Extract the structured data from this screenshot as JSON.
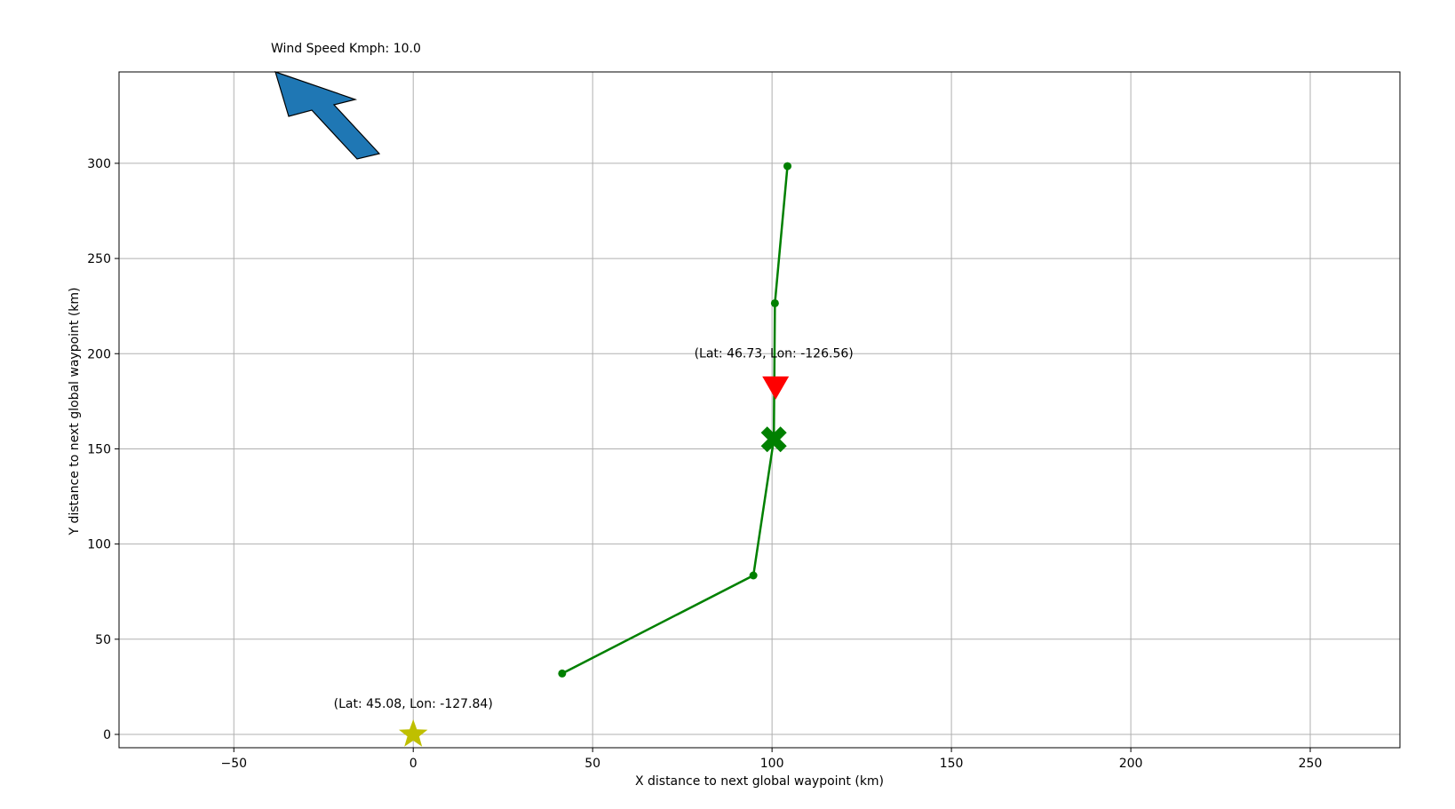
{
  "chart_data": {
    "type": "line",
    "xlabel": "X distance to next global waypoint (km)",
    "ylabel": "Y distance to next global waypoint (km)",
    "xlim": [
      -82,
      275
    ],
    "ylim": [
      -7,
      348
    ],
    "xticks": [
      -50,
      0,
      50,
      100,
      150,
      200,
      250
    ],
    "xtick_labels": [
      "−50",
      "0",
      "50",
      "100",
      "150",
      "200",
      "250"
    ],
    "yticks": [
      0,
      50,
      100,
      150,
      200,
      250,
      300
    ],
    "ytick_labels": [
      "0",
      "50",
      "100",
      "150",
      "200",
      "250",
      "300"
    ],
    "grid": true,
    "series": [
      {
        "color": "#008000",
        "marker": "circle",
        "x": [
          41.5,
          94.8,
          100.5,
          100.8,
          104.3
        ],
        "y": [
          32,
          83.5,
          155,
          226.5,
          298.5
        ]
      }
    ],
    "markers": [
      {
        "kind": "star",
        "color": "#bfbf00",
        "x": 0,
        "y": 0
      },
      {
        "kind": "x",
        "color": "#008000",
        "x": 100.5,
        "y": 155
      },
      {
        "kind": "triangle-down",
        "color": "#ff0000",
        "x": 101,
        "y": 182
      }
    ],
    "annotations": [
      {
        "text": "(Lat: 45.08, Lon: -127.84)",
        "x": 0,
        "y": 14
      },
      {
        "text": "(Lat: 46.73, Lon: -126.56)",
        "x": 100.5,
        "y": 198
      }
    ],
    "wind": {
      "label": "Wind Speed Kmph: 10.0",
      "color": "#1f77b4",
      "direction": "up-left"
    }
  }
}
